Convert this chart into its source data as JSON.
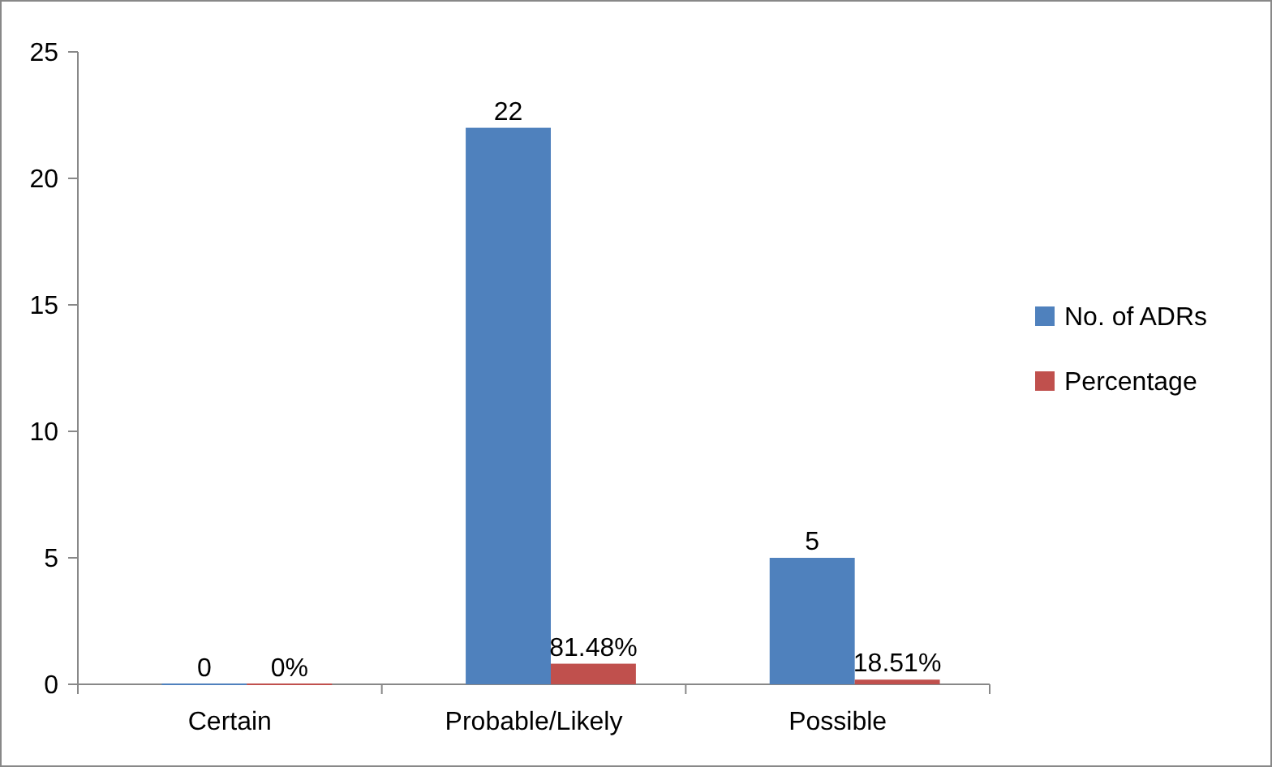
{
  "chart_data": {
    "type": "bar",
    "categories": [
      "Certain",
      "Probable/Likely",
      "Possible"
    ],
    "series": [
      {
        "name": "No. of ADRs",
        "color": "#4f81bd",
        "values": [
          0,
          22,
          5
        ],
        "value_labels": [
          "0",
          "22",
          "5"
        ]
      },
      {
        "name": "Percentage",
        "color": "#c0504d",
        "values": [
          0,
          0.8148,
          0.1851
        ],
        "value_labels": [
          "0%",
          "81.48%",
          "18.51%"
        ]
      }
    ],
    "ylim": [
      0,
      25
    ],
    "yticks": [
      0,
      5,
      10,
      15,
      20,
      25
    ],
    "grid": false,
    "legend": "right"
  }
}
